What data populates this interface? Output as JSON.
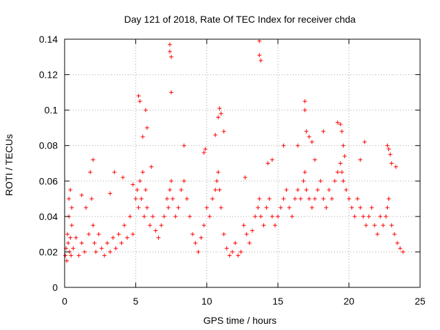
{
  "chart_data": {
    "type": "scatter",
    "title": "Day 121 of 2018, Rate Of TEC Index for receiver chda",
    "xlabel": "GPS time / hours",
    "ylabel": "ROTI / TECUs",
    "xlim": [
      0,
      25
    ],
    "ylim": [
      0,
      0.14
    ],
    "xticks": [
      0,
      5,
      10,
      15,
      20,
      25
    ],
    "xtick_labels": [
      "0",
      "5",
      "10",
      "15",
      "20",
      "25"
    ],
    "yticks": [
      0,
      0.02,
      0.04,
      0.06,
      0.08,
      0.1,
      0.12,
      0.14
    ],
    "ytick_labels": [
      "0",
      "0.02",
      "0.04",
      "0.06",
      "0.08",
      "0.1",
      "0.12",
      "0.14"
    ],
    "grid": true,
    "marker": "+",
    "series": [
      {
        "name": "ROTI",
        "color": "#ff0000",
        "x": [
          0.05,
          0.1,
          0.15,
          0.2,
          0.25,
          0.3,
          0.35,
          0.4,
          0.45,
          0.5,
          0.6,
          0.8,
          1.0,
          1.2,
          1.4,
          1.5,
          1.7,
          1.9,
          2.0,
          2.1,
          2.2,
          2.4,
          2.6,
          2.8,
          3.0,
          3.2,
          3.4,
          3.6,
          3.8,
          4.0,
          4.2,
          4.4,
          4.6,
          4.8,
          5.0,
          5.1,
          5.2,
          5.3,
          5.4,
          5.5,
          5.6,
          5.7,
          5.8,
          6.0,
          6.2,
          6.4,
          6.6,
          6.8,
          7.0,
          7.2,
          7.3,
          7.4,
          7.5,
          7.6,
          7.8,
          8.0,
          8.2,
          8.4,
          8.6,
          8.8,
          9.0,
          9.2,
          9.4,
          9.6,
          9.8,
          10.0,
          10.2,
          10.4,
          10.6,
          10.7,
          10.8,
          10.9,
          11.0,
          11.2,
          11.4,
          11.6,
          11.8,
          12.0,
          12.2,
          12.4,
          12.6,
          12.8,
          13.0,
          13.2,
          13.4,
          13.6,
          13.7,
          13.8,
          14.0,
          14.2,
          14.4,
          14.6,
          14.8,
          15.0,
          15.2,
          15.4,
          15.6,
          15.8,
          16.0,
          16.2,
          16.4,
          16.6,
          16.8,
          16.9,
          17.0,
          17.2,
          17.4,
          17.6,
          17.8,
          18.0,
          18.2,
          18.4,
          18.6,
          18.8,
          19.0,
          19.2,
          19.4,
          19.5,
          19.6,
          19.8,
          20.0,
          20.2,
          20.4,
          20.6,
          20.8,
          21.0,
          21.2,
          21.4,
          21.6,
          21.8,
          22.0,
          22.2,
          22.4,
          22.6,
          22.7,
          22.8,
          23.0,
          23.2,
          23.4,
          23.6,
          23.8,
          0.3,
          0.4,
          0.5,
          1.2,
          1.8,
          2.0,
          3.2,
          3.5,
          4.1,
          4.8,
          5.2,
          5.3,
          5.5,
          5.7,
          5.8,
          6.1,
          7.4,
          7.4,
          7.5,
          7.5,
          8.4,
          9.8,
          9.9,
          10.6,
          10.8,
          10.9,
          11.0,
          11.2,
          12.7,
          13.7,
          13.7,
          13.8,
          14.3,
          14.6,
          15.4,
          16.4,
          16.9,
          16.9,
          17.0,
          17.2,
          17.4,
          17.6,
          18.2,
          19.2,
          19.4,
          19.5,
          19.6,
          19.7,
          20.8,
          21.1,
          22.7,
          22.8,
          22.9,
          23.0,
          23.3
        ],
        "y": [
          0.018,
          0.022,
          0.015,
          0.03,
          0.025,
          0.04,
          0.02,
          0.028,
          0.018,
          0.035,
          0.022,
          0.028,
          0.018,
          0.025,
          0.02,
          0.045,
          0.03,
          0.05,
          0.035,
          0.025,
          0.02,
          0.03,
          0.022,
          0.018,
          0.025,
          0.02,
          0.028,
          0.022,
          0.03,
          0.025,
          0.035,
          0.028,
          0.04,
          0.03,
          0.05,
          0.055,
          0.045,
          0.06,
          0.05,
          0.065,
          0.04,
          0.055,
          0.045,
          0.035,
          0.04,
          0.032,
          0.028,
          0.035,
          0.04,
          0.05,
          0.045,
          0.055,
          0.06,
          0.05,
          0.04,
          0.045,
          0.055,
          0.06,
          0.05,
          0.04,
          0.03,
          0.025,
          0.02,
          0.028,
          0.035,
          0.045,
          0.04,
          0.05,
          0.055,
          0.06,
          0.065,
          0.055,
          0.045,
          0.03,
          0.022,
          0.018,
          0.02,
          0.025,
          0.018,
          0.02,
          0.035,
          0.03,
          0.025,
          0.032,
          0.04,
          0.045,
          0.05,
          0.04,
          0.035,
          0.045,
          0.05,
          0.04,
          0.035,
          0.04,
          0.045,
          0.05,
          0.055,
          0.045,
          0.04,
          0.05,
          0.055,
          0.05,
          0.06,
          0.065,
          0.055,
          0.05,
          0.045,
          0.05,
          0.055,
          0.06,
          0.05,
          0.045,
          0.055,
          0.05,
          0.06,
          0.065,
          0.07,
          0.065,
          0.06,
          0.055,
          0.05,
          0.045,
          0.04,
          0.05,
          0.045,
          0.04,
          0.035,
          0.04,
          0.045,
          0.035,
          0.03,
          0.04,
          0.035,
          0.04,
          0.045,
          0.05,
          0.035,
          0.03,
          0.025,
          0.022,
          0.02,
          0.05,
          0.055,
          0.045,
          0.052,
          0.065,
          0.072,
          0.053,
          0.065,
          0.062,
          0.058,
          0.108,
          0.105,
          0.085,
          0.1,
          0.09,
          0.068,
          0.137,
          0.133,
          0.13,
          0.11,
          0.08,
          0.076,
          0.078,
          0.086,
          0.096,
          0.101,
          0.098,
          0.088,
          0.062,
          0.139,
          0.131,
          0.128,
          0.07,
          0.072,
          0.08,
          0.08,
          0.105,
          0.1,
          0.088,
          0.085,
          0.082,
          0.072,
          0.088,
          0.093,
          0.092,
          0.088,
          0.08,
          0.074,
          0.072,
          0.082,
          0.08,
          0.078,
          0.075,
          0.07,
          0.068
        ]
      }
    ]
  }
}
